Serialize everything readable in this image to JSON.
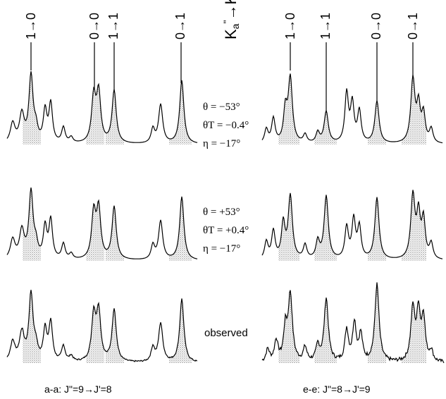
{
  "figure": {
    "header_symbol": "Ka\"→Ka'",
    "transitions_left": [
      "1→0",
      "0→0",
      "1→1",
      "0→1"
    ],
    "transitions_right": [
      "1→0",
      "1→1",
      "0→0",
      "0→1"
    ],
    "params_top": {
      "theta": "θ = −53°",
      "theta_t": "θT = −0.4°",
      "eta": "η = −17°"
    },
    "params_mid": {
      "theta": "θ = +53°",
      "theta_t": "θT = +0.4°",
      "eta": "η = −17°"
    },
    "observed_label": "observed",
    "caption_left": "a-a: J\"=9→J'=8",
    "caption_right": "e-e: J\"=8→J'=9"
  }
}
